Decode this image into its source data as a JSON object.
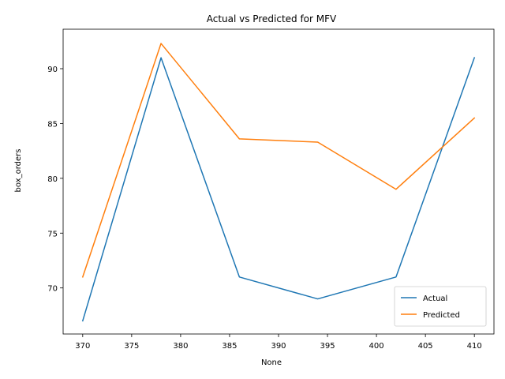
{
  "chart_data": {
    "type": "line",
    "title": "Actual vs Predicted for MFV",
    "xlabel": "None",
    "ylabel": "box_orders",
    "xlim": [
      368,
      412
    ],
    "ylim": [
      65.8,
      93.6
    ],
    "xticks": [
      370,
      375,
      380,
      385,
      390,
      395,
      400,
      405,
      410
    ],
    "yticks": [
      70,
      75,
      80,
      85,
      90
    ],
    "x": [
      370,
      378,
      386,
      394,
      402,
      410
    ],
    "series": [
      {
        "name": "Actual",
        "color": "#1f77b4",
        "values": [
          67,
          91,
          71,
          69,
          71,
          91
        ]
      },
      {
        "name": "Predicted",
        "color": "#ff7f0e",
        "values": [
          71.0,
          92.3,
          83.6,
          83.3,
          79.0,
          85.5
        ]
      }
    ],
    "legend": "lower-right",
    "grid": false
  }
}
